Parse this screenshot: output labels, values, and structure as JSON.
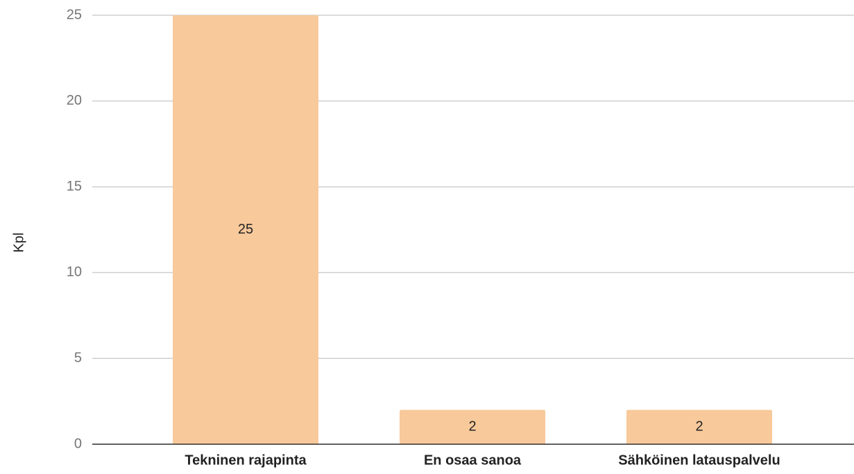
{
  "chart_data": {
    "type": "bar",
    "y_label": "Kpl",
    "categories": [
      "Tekninen rajapinta",
      "En osaa sanoa",
      "Sähköinen latauspalvelu"
    ],
    "values": [
      25,
      2,
      2
    ],
    "color": "#f8c99b",
    "ylim": [
      0,
      25
    ],
    "yticks": [
      0,
      5,
      10,
      15,
      20,
      25
    ],
    "grid": true,
    "data_labels": true
  }
}
